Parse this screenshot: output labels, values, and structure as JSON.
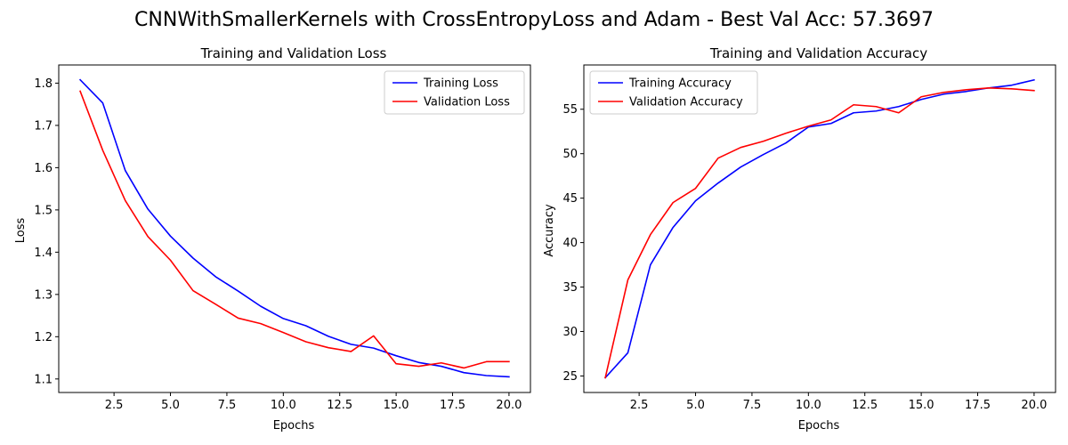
{
  "figure": {
    "title": "CNNWithSmallerKernels with CrossEntropyLoss and Adam - Best Val Acc: 57.3697"
  },
  "chart_data": [
    {
      "type": "line",
      "title": "Training and Validation Loss",
      "xlabel": "Epochs",
      "ylabel": "Loss",
      "xlim": [
        0.05,
        20.95
      ],
      "ylim": [
        1.068,
        1.843
      ],
      "xticks": [
        2.5,
        5.0,
        7.5,
        10.0,
        12.5,
        15.0,
        17.5,
        20.0
      ],
      "xtick_labels": [
        "2.5",
        "5.0",
        "7.5",
        "10.0",
        "12.5",
        "15.0",
        "17.5",
        "20.0"
      ],
      "yticks": [
        1.1,
        1.2,
        1.3,
        1.4,
        1.5,
        1.6,
        1.7,
        1.8
      ],
      "ytick_labels": [
        "1.1",
        "1.2",
        "1.3",
        "1.4",
        "1.5",
        "1.6",
        "1.7",
        "1.8"
      ],
      "grid": false,
      "legend_position": "upper right",
      "x": [
        1,
        2,
        3,
        4,
        5,
        6,
        7,
        8,
        9,
        10,
        11,
        12,
        13,
        14,
        15,
        16,
        17,
        18,
        19,
        20
      ],
      "series": [
        {
          "name": "Training Loss",
          "color": "#0000ff",
          "values": [
            1.808,
            1.753,
            1.593,
            1.502,
            1.438,
            1.386,
            1.342,
            1.308,
            1.272,
            1.243,
            1.226,
            1.201,
            1.182,
            1.173,
            1.155,
            1.139,
            1.13,
            1.115,
            1.108,
            1.105
          ]
        },
        {
          "name": "Validation Loss",
          "color": "#ff0000",
          "values": [
            1.781,
            1.641,
            1.522,
            1.437,
            1.381,
            1.309,
            1.277,
            1.244,
            1.231,
            1.21,
            1.188,
            1.174,
            1.165,
            1.202,
            1.136,
            1.13,
            1.138,
            1.126,
            1.141,
            1.141
          ]
        }
      ]
    },
    {
      "type": "line",
      "title": "Training and Validation Accuracy",
      "xlabel": "Epochs",
      "ylabel": "Accuracy",
      "xlim": [
        0.05,
        20.95
      ],
      "ylim": [
        23.14,
        59.98
      ],
      "xticks": [
        2.5,
        5.0,
        7.5,
        10.0,
        12.5,
        15.0,
        17.5,
        20.0
      ],
      "xtick_labels": [
        "2.5",
        "5.0",
        "7.5",
        "10.0",
        "12.5",
        "15.0",
        "17.5",
        "20.0"
      ],
      "yticks": [
        25,
        30,
        35,
        40,
        45,
        50,
        55
      ],
      "ytick_labels": [
        "25",
        "30",
        "35",
        "40",
        "45",
        "50",
        "55"
      ],
      "grid": false,
      "legend_position": "upper left",
      "x": [
        1,
        2,
        3,
        4,
        5,
        6,
        7,
        8,
        9,
        10,
        11,
        12,
        13,
        14,
        15,
        16,
        17,
        18,
        19,
        20
      ],
      "series": [
        {
          "name": "Training Accuracy",
          "color": "#0000ff",
          "values": [
            24.8,
            27.6,
            37.5,
            41.7,
            44.7,
            46.7,
            48.5,
            49.9,
            51.2,
            53.0,
            53.4,
            54.6,
            54.8,
            55.3,
            56.1,
            56.7,
            57.0,
            57.4,
            57.7,
            58.3
          ]
        },
        {
          "name": "Validation Accuracy",
          "color": "#ff0000",
          "values": [
            24.8,
            35.8,
            40.9,
            44.5,
            46.1,
            49.5,
            50.7,
            51.4,
            52.3,
            53.1,
            53.8,
            55.5,
            55.3,
            54.6,
            56.4,
            56.9,
            57.2,
            57.4,
            57.3,
            57.1
          ]
        }
      ]
    }
  ]
}
